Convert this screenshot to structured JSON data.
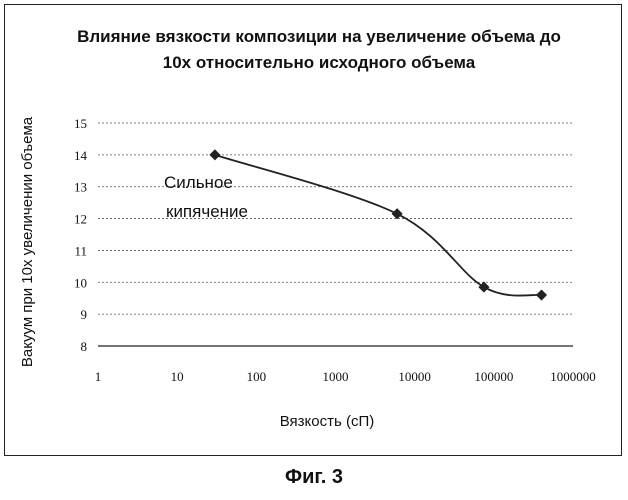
{
  "chart_data": {
    "type": "line",
    "title_lines": [
      "Влияние вязкости композиции на увеличение объема до",
      "10х относительно исходного объема"
    ],
    "xlabel": "Вязкость (сП)",
    "ylabel": "Вакуум при 10х увеличении объема",
    "x_scale": "log",
    "xlim": [
      1,
      1000000
    ],
    "ylim": [
      8,
      15
    ],
    "x_ticks": [
      "1",
      "10",
      "100",
      "1000",
      "10000",
      "100000",
      "1000000"
    ],
    "y_ticks": [
      "8",
      "9",
      "10",
      "11",
      "12",
      "13",
      "14",
      "15"
    ],
    "grid": "horizontal-dashed",
    "legend": "none",
    "series": [
      {
        "color": "#222222",
        "marker": "diamond",
        "smooth": true,
        "points": [
          {
            "x": 30,
            "y": 14.0
          },
          {
            "x": 6000,
            "y": 12.15
          },
          {
            "x": 75000,
            "y": 9.85
          },
          {
            "x": 400000,
            "y": 9.6
          }
        ]
      }
    ],
    "annotation_lines": [
      "Сильное",
      "кипячение"
    ]
  },
  "caption": "Фиг. 3"
}
